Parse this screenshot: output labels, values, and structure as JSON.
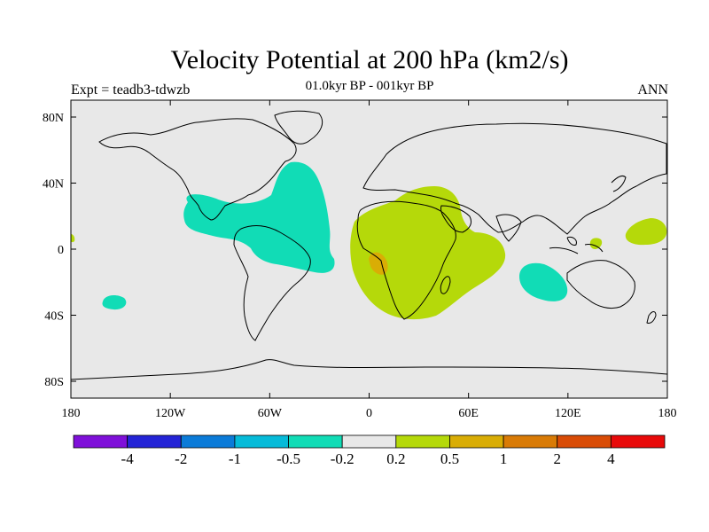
{
  "title": "Velocity Potential at 200 hPa (km2/s)",
  "subtitle": "01.0kyr BP - 001kyr BP",
  "experiment": "Expt = teadb3-tdwzb",
  "season": "ANN",
  "map": {
    "background_color": "#e8e8e8",
    "x_tick_labels": [
      "180",
      "120W",
      "60W",
      "0",
      "60E",
      "120E",
      "180"
    ],
    "y_tick_labels": [
      "80N",
      "40N",
      "0",
      "40S",
      "80S"
    ]
  },
  "colorbar": {
    "colors": [
      "#7f10d9",
      "#2424d6",
      "#0b7bd8",
      "#06bbd9",
      "#11dcb6",
      "#e8e8e8",
      "#b5d90a",
      "#d9ad05",
      "#d97b06",
      "#d94c06",
      "#e80a0a"
    ],
    "labels": [
      "-4",
      "-2",
      "-1",
      "-0.5",
      "-0.2",
      "0.2",
      "0.5",
      "1",
      "2",
      "4"
    ]
  },
  "field_colors": {
    "negative_light": "#11dcb6",
    "positive_light": "#b5d90a",
    "positive_medium": "#d9ad05"
  }
}
